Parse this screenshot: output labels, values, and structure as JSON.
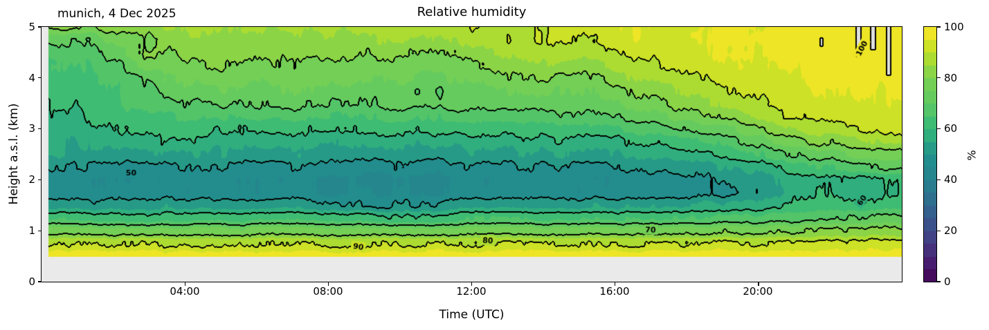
{
  "figure": {
    "title": "Relative humidity",
    "annotation": "munich, 4 Dec 2025"
  },
  "axes": {
    "xlabel": "Time (UTC)",
    "ylabel": "Height a.s.l. (km)",
    "x_range_hours": [
      0,
      24
    ],
    "y_range_km": [
      0,
      5
    ],
    "x_ticks": [
      {
        "hour": 4,
        "label": "04:00"
      },
      {
        "hour": 8,
        "label": "08:00"
      },
      {
        "hour": 12,
        "label": "12:00"
      },
      {
        "hour": 16,
        "label": "16:00"
      },
      {
        "hour": 20,
        "label": "20:00"
      }
    ],
    "y_ticks": [
      {
        "km": 0,
        "label": "0"
      },
      {
        "km": 1,
        "label": "1"
      },
      {
        "km": 2,
        "label": "2"
      },
      {
        "km": 3,
        "label": "3"
      },
      {
        "km": 4,
        "label": "4"
      },
      {
        "km": 5,
        "label": "5"
      }
    ]
  },
  "colorbar": {
    "label": "%",
    "vmin": 0,
    "vmax": 100,
    "ticks": [
      {
        "value": 0,
        "label": "0"
      },
      {
        "value": 20,
        "label": "20"
      },
      {
        "value": 40,
        "label": "40"
      },
      {
        "value": 60,
        "label": "60"
      },
      {
        "value": 80,
        "label": "80"
      },
      {
        "value": 100,
        "label": "100"
      }
    ]
  },
  "chart_data": {
    "type": "heatmap",
    "subtype": "filled_contour_time_height",
    "units": "%",
    "time_hours": [
      0,
      1,
      2,
      3,
      4,
      5,
      6,
      7,
      8,
      9,
      10,
      11,
      12,
      13,
      14,
      15,
      16,
      17,
      18,
      19,
      20,
      21,
      22,
      23,
      24
    ],
    "heights_km": [
      0.5,
      0.75,
      1.0,
      1.25,
      1.5,
      1.75,
      2.0,
      2.25,
      2.5,
      2.75,
      3.0,
      3.25,
      3.5,
      3.75,
      4.0,
      4.25,
      4.5,
      4.75,
      5.0
    ],
    "rh_grid": [
      [
        98,
        98,
        98,
        98,
        98,
        98,
        98,
        98,
        98,
        98,
        98,
        98,
        98,
        98,
        98,
        98,
        98,
        98,
        98,
        98,
        98,
        98,
        98,
        98,
        98
      ],
      [
        89,
        89,
        89,
        90,
        89,
        89,
        90,
        90,
        89,
        89,
        90,
        90,
        90,
        90,
        90,
        89,
        89,
        90,
        90,
        90,
        90,
        91,
        91,
        92,
        92
      ],
      [
        77,
        77,
        76,
        77,
        77,
        76,
        77,
        77,
        76,
        76,
        77,
        77,
        77,
        77,
        77,
        77,
        77,
        78,
        78,
        78,
        79,
        79,
        80,
        81,
        81
      ],
      [
        64,
        63,
        62,
        63,
        64,
        63,
        63,
        64,
        63,
        62,
        61,
        62,
        64,
        64,
        64,
        64,
        64,
        65,
        65,
        66,
        67,
        68,
        69,
        70,
        71
      ],
      [
        54,
        52,
        52,
        53,
        54,
        53,
        53,
        54,
        51,
        50,
        50,
        51,
        53,
        53,
        53,
        53,
        54,
        55,
        56,
        56,
        58,
        61,
        62,
        62,
        64
      ],
      [
        48,
        46,
        46,
        47,
        47,
        47,
        46,
        47,
        44,
        45,
        45,
        44,
        46,
        46,
        47,
        46,
        47,
        48,
        49,
        49,
        52,
        58,
        59,
        57,
        61
      ],
      [
        47,
        46,
        45,
        46,
        46,
        46,
        45,
        46,
        44,
        44,
        44,
        44,
        45,
        46,
        46,
        46,
        46,
        47,
        49,
        50,
        53,
        57,
        60,
        58,
        62
      ],
      [
        50,
        49,
        48,
        49,
        49,
        49,
        48,
        49,
        48,
        47,
        48,
        48,
        48,
        49,
        49,
        49,
        50,
        51,
        52,
        54,
        58,
        62,
        66,
        68,
        72
      ],
      [
        55,
        54,
        53,
        54,
        54,
        54,
        53,
        54,
        52,
        52,
        52,
        53,
        53,
        54,
        54,
        54,
        55,
        56,
        58,
        61,
        66,
        70,
        74,
        77,
        79
      ],
      [
        55,
        55,
        56,
        58,
        59,
        57,
        57,
        58,
        56,
        56,
        56,
        57,
        57,
        58,
        58,
        58,
        59,
        61,
        63,
        67,
        73,
        78,
        82,
        85,
        87
      ],
      [
        57,
        57,
        60,
        62,
        63,
        61,
        61,
        62,
        61,
        61,
        61,
        62,
        62,
        63,
        63,
        63,
        65,
        67,
        70,
        74,
        80,
        85,
        89,
        91,
        93
      ],
      [
        59,
        58,
        63,
        65,
        66,
        66,
        66,
        67,
        66,
        66,
        67,
        67,
        68,
        68,
        68,
        68,
        70,
        73,
        76,
        80,
        86,
        90,
        92,
        94,
        95
      ],
      [
        61,
        60,
        65,
        68,
        70,
        71,
        71,
        72,
        71,
        71,
        72,
        72,
        73,
        73,
        73,
        72,
        75,
        78,
        82,
        86,
        90,
        92,
        94,
        95,
        96
      ],
      [
        63,
        62,
        66,
        70,
        73,
        74,
        74,
        75,
        74,
        73,
        72,
        70,
        72,
        75,
        76,
        75,
        78,
        82,
        86,
        89,
        92,
        94,
        95,
        96,
        97
      ],
      [
        64,
        63,
        67,
        72,
        75,
        77,
        76,
        78,
        77,
        76,
        75,
        74,
        76,
        79,
        80,
        79,
        82,
        86,
        89,
        92,
        94,
        95,
        96,
        97,
        97
      ],
      [
        65,
        64,
        69,
        77,
        79,
        80,
        78,
        80,
        79,
        78,
        78,
        77,
        79,
        82,
        84,
        83,
        86,
        89,
        92,
        94,
        95,
        96,
        97,
        98,
        98
      ],
      [
        67,
        66,
        72,
        80,
        82,
        83,
        81,
        82,
        82,
        81,
        81,
        80,
        83,
        86,
        87,
        87,
        89,
        92,
        94,
        95,
        96,
        97,
        98,
        99,
        98
      ],
      [
        72,
        70,
        76,
        80,
        84,
        84,
        83,
        85,
        84,
        84,
        85,
        84,
        87,
        89,
        90,
        90,
        92,
        94,
        95,
        96,
        97,
        98,
        99,
        99,
        99
      ],
      [
        80,
        80,
        82,
        84,
        85,
        86,
        86,
        87,
        86,
        87,
        88,
        88,
        89,
        88,
        90,
        92,
        93,
        94,
        95,
        95,
        96,
        97,
        98,
        99,
        99
      ]
    ],
    "fill_band_step": 5,
    "contour_line_levels": [
      50,
      60,
      70,
      80,
      90,
      100
    ],
    "contour_labels": [
      {
        "text": "50",
        "t": 2.5,
        "z": 2.14,
        "rot_deg": 0
      },
      {
        "text": "90",
        "t": 8.84,
        "z": 0.69,
        "rot_deg": 8
      },
      {
        "text": "80",
        "t": 12.45,
        "z": 0.81,
        "rot_deg": 4
      },
      {
        "text": "70",
        "t": 16.99,
        "z": 1.02,
        "rot_deg": 3
      },
      {
        "text": "60",
        "t": 22.88,
        "z": 1.6,
        "rot_deg": -55
      },
      {
        "text": "100",
        "t": 22.88,
        "z": 4.58,
        "rot_deg": -62
      }
    ],
    "oversaturation_stripes": [
      {
        "t_start": 22.72,
        "t_end": 22.86,
        "z_min": 4.42,
        "z_max": 5.0
      },
      {
        "t_start": 23.14,
        "t_end": 23.26,
        "z_min": 4.55,
        "z_max": 5.0
      },
      {
        "t_start": 23.58,
        "t_end": 23.7,
        "z_min": 4.05,
        "z_max": 5.0
      },
      {
        "t_start": 21.73,
        "t_end": 21.79,
        "z_min": 4.62,
        "z_max": 4.78
      }
    ],
    "ground_height_km": 0.49,
    "data_start_hour": 0.19,
    "colormap": "viridis",
    "colormap_stops": [
      "#440154",
      "#482878",
      "#3e4989",
      "#31688e",
      "#26828e",
      "#21918c",
      "#35b779",
      "#5ec962",
      "#7ad151",
      "#bddf26",
      "#fde725"
    ],
    "oversaturation_color": "#e0e0e0",
    "below_ground_color": "#eaeaea",
    "contour_line_color": "#000000",
    "noise_octaves": [
      {
        "scale_t": 0.5,
        "scale_z": 0.55,
        "amp": 1.6,
        "seed": 7
      },
      {
        "scale_t": 0.15,
        "scale_z": 0.22,
        "amp": 1.0,
        "seed": 13
      },
      {
        "scale_t": 0.07,
        "scale_z": 0.9,
        "amp": 0.9,
        "seed": 29
      }
    ]
  }
}
